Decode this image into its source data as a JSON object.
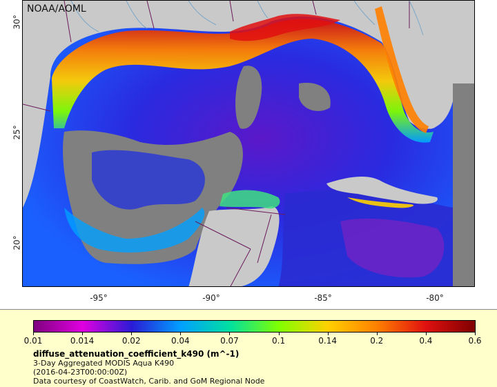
{
  "map": {
    "credit": "NOAA/AOML",
    "region": "Gulf of Mexico and Caribbean",
    "x_ticks": [
      "-95°",
      "-90°",
      "-85°",
      "-80°"
    ],
    "y_ticks": [
      "30°",
      "25°",
      "20°"
    ],
    "colors": {
      "land": "#c9c9c9",
      "no_data": "#808080",
      "boundary": "#6b1a5b",
      "river": "#7aa6c8"
    }
  },
  "legend": {
    "colorbar_labels": [
      "0.01",
      "0.014",
      "0.02",
      "0.04",
      "0.07",
      "0.1",
      "0.14",
      "0.2",
      "0.4",
      "0.6"
    ],
    "colorbar_colors": [
      "#7f007f",
      "#e000e0",
      "#2a1bd6",
      "#00a0ff",
      "#00e0a0",
      "#80ff00",
      "#ffd000",
      "#ff8000",
      "#e01010",
      "#7f0000"
    ],
    "variable": "diffuse_attenuation_coefficient_k490 (m^-1)",
    "dataset": "3-Day Aggregated MODIS Aqua K490",
    "date": "(2016-04-23T00:00:00Z)",
    "courtesy": "Data courtesy of CoastWatch, Carib. and GoM Regional Node"
  }
}
